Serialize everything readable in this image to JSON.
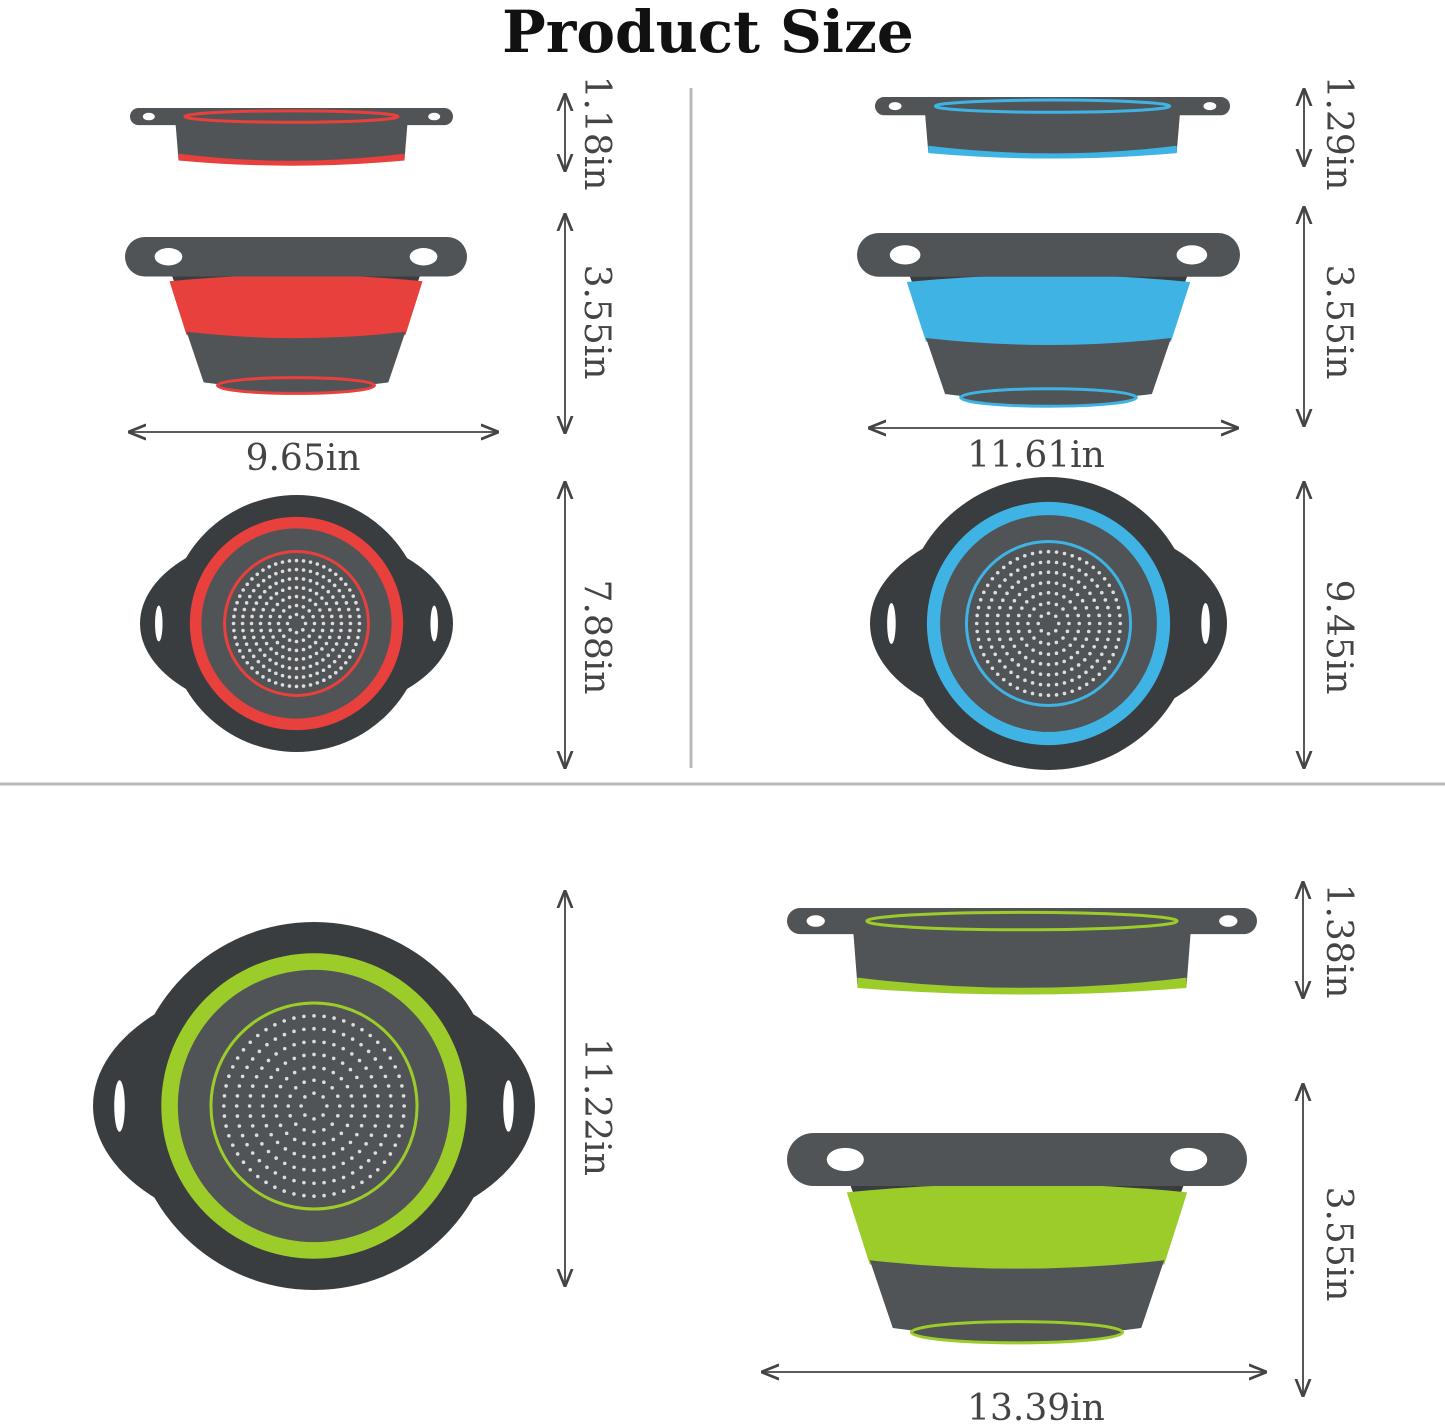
{
  "title": "Product Size",
  "colors": {
    "red": "#e8403c",
    "blue": "#3fb4e4",
    "green": "#9ccc2a",
    "gray": "#505457",
    "dark": "#3a3d40",
    "arrow": "#444444",
    "divider": "#b8b8b8"
  },
  "small": {
    "color": "red",
    "collapsed_height": "1.18in",
    "expanded_height": "3.55in",
    "width": "9.65in",
    "diameter": "7.88in"
  },
  "medium": {
    "color": "blue",
    "collapsed_height": "1.29in",
    "expanded_height": "3.55in",
    "width": "11.61in",
    "diameter": "9.45in"
  },
  "large": {
    "color": "green",
    "collapsed_height": "1.38in",
    "expanded_height": "3.55in",
    "width": "13.39in",
    "diameter": "11.22in"
  }
}
